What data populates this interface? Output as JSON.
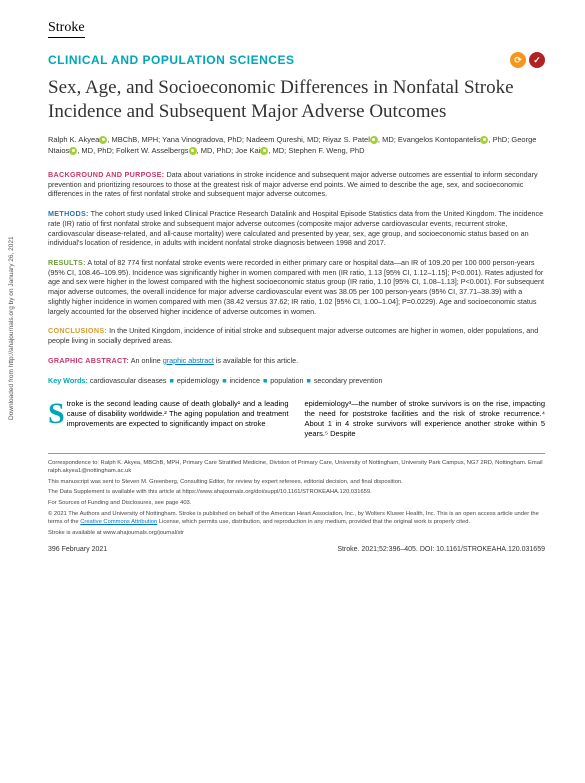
{
  "sidebar_note": "Downloaded from http://ahajournals.org by on January 26, 2021",
  "journal": "Stroke",
  "section_label": "CLINICAL AND POPULATION SCIENCES",
  "badges": [
    {
      "bg": "#f7941e",
      "glyph": "⟳"
    },
    {
      "bg": "#b22222",
      "glyph": "✓"
    }
  ],
  "title": "Sex, Age, and Socioeconomic Differences in Nonfatal Stroke Incidence and Subsequent Major Adverse Outcomes",
  "authors_html": "Ralph K. Akyea<orc>, MBChB, MPH; Yana Vinogradova, PhD; Nadeem Qureshi, MD; Riyaz S. Patel<orc>, MD; Evangelos Kontopantelis<orc>, PhD; George Ntaios<orc>, MD, PhD; Folkert W. Asselbergs<orc>, MD, PhD; Joe Kai<orc>, MD; Stephen F. Weng, PhD",
  "abstract": {
    "background": {
      "heading": "BACKGROUND AND PURPOSE:",
      "color": "#c7376d",
      "text": "Data about variations in stroke incidence and subsequent major adverse outcomes are essential to inform secondary prevention and prioritizing resources to those at the greatest risk of major adverse end points. We aimed to describe the age, sex, and socioeconomic differences in the rates of first nonfatal stroke and subsequent major adverse outcomes."
    },
    "methods": {
      "heading": "METHODS:",
      "color": "#2a72b5",
      "text": "The cohort study used linked Clinical Practice Research Datalink and Hospital Episode Statistics data from the United Kingdom. The incidence rate (IR) ratio of first nonfatal stroke and subsequent major adverse outcomes (composite major adverse cardiovascular events, recurrent stroke, cardiovascular disease-related, and all-cause mortality) were calculated and presented by year, sex, age group, and socioeconomic status based on an individual's location of residence, in adults with incident nonfatal stroke diagnosis between 1998 and 2017."
    },
    "results": {
      "heading": "RESULTS:",
      "color": "#6a9c3a",
      "text": "A total of 82 774 first nonfatal stroke events were recorded in either primary care or hospital data—an IR of 109.20 per 100 000 person-years (95% CI, 108.46–109.95). Incidence was significantly higher in women compared with men (IR ratio, 1.13 [95% CI, 1.12–1.15]; P<0.001). Rates adjusted for age and sex were higher in the lowest compared with the highest socioeconomic status group (IR ratio, 1.10 [95% CI, 1.08–1.13]; P<0.001). For subsequent major adverse outcomes, the overall incidence for major adverse cardiovascular event was 38.05 per 100 person-years (95% CI, 37.71–38.39) with a slightly higher incidence in women compared with men (38.42 versus 37.62; IR ratio, 1.02 [95% CI, 1.00–1.04]; P=0.0229). Age and socioeconomic status largely accounted for the observed higher incidence of adverse outcomes in women."
    },
    "conclusions": {
      "heading": "CONCLUSIONS:",
      "color": "#d89b2b",
      "text": "In the United Kingdom, incidence of initial stroke and subsequent major adverse outcomes are higher in women, older populations, and people living in socially deprived areas."
    },
    "graphic": {
      "heading": "GRAPHIC ABSTRACT:",
      "color": "#c7376d",
      "prefix": "An online ",
      "link": "graphic abstract",
      "suffix": " is available for this article."
    }
  },
  "keywords": {
    "label": "Key Words:",
    "items": [
      "cardiovascular diseases",
      "epidemiology",
      "incidence",
      "population",
      "secondary prevention"
    ]
  },
  "body": {
    "col1_dropcap": "S",
    "col1": "troke is the second leading cause of death globally¹ and a leading cause of disability worldwide.² The aging population and treatment improvements are expected to significantly impact on stroke",
    "col2": "epidemiology³—the number of stroke survivors is on the rise, impacting the need for poststroke facilities and the risk of stroke recurrence.⁴ About 1 in 4 stroke survivors will experience another stroke within 5 years.⁵ Despite"
  },
  "footer": {
    "correspondence": "Correspondence to: Ralph K. Akyea, MBChB, MPH, Primary Care Stratified Medicine, Division of Primary Care, University of Nottingham, University Park Campus, NG7 2RD, Nottingham. Email ralph.akyea1@nottingham.ac.uk",
    "manuscript": "This manuscript was sent to Steven M. Greenberg, Consulting Editor, for review by expert referees, editorial decision, and final disposition.",
    "supplement": "The Data Supplement is available with this article at https://www.ahajournals.org/doi/suppl/10.1161/STROKEAHA.120.031659.",
    "funding": "For Sources of Funding and Disclosures, see page 403.",
    "copyright_pre": "© 2021 The Authors and University of Nottingham. Stroke is published on behalf of the American Heart Association, Inc., by Wolters Kluwer Health, Inc. This is an open access article under the terms of the ",
    "cc_link": "Creative Commons Attribution",
    "copyright_post": " License, which permits use, distribution, and reproduction in any medium, provided that the original work is properly cited.",
    "avail": "Stroke is available at www.ahajournals.org/journal/str"
  },
  "pagefoot": {
    "left": "396   February 2021",
    "right": "Stroke. 2021;52:396–405. DOI: 10.1161/STROKEAHA.120.031659"
  }
}
